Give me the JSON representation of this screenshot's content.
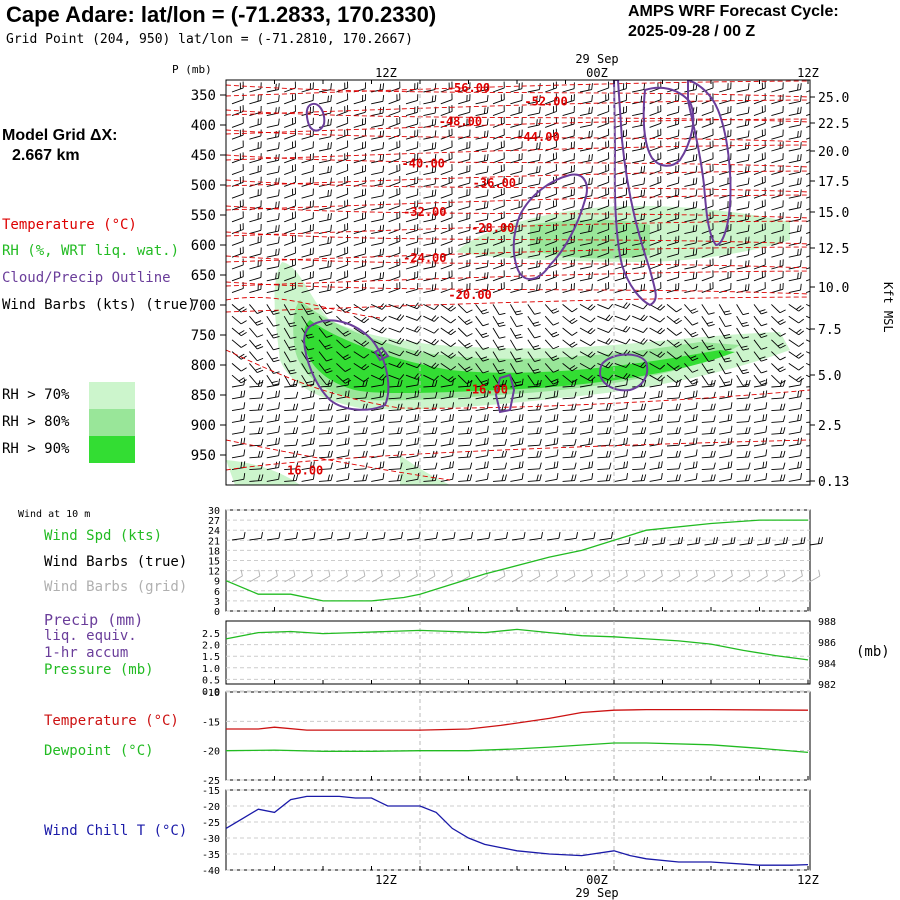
{
  "header": {
    "title": "Cape Adare:  lat/lon = (-71.2833, 170.2330)",
    "subtitle": "Grid Point (204, 950) lat/lon = (-71.2810, 170.2667)",
    "cycle_line1": "AMPS WRF Forecast Cycle:",
    "cycle_line2": "2025-09-28 / 00  Z"
  },
  "model_grid": {
    "line1": "Model Grid ΔX:",
    "line2": "2.667 km"
  },
  "legend": {
    "temperature": "Temperature (°C)",
    "rh": "RH (%, WRT liq. wat.)",
    "cloud": "Cloud/Precip Outline",
    "wind_barbs": "Wind Barbs (kts) (true)",
    "rh70": "RH > 70%",
    "rh80": "RH > 80%",
    "rh90": "RH > 90%"
  },
  "colors": {
    "temperature": "#dd0000",
    "rh": "#22bb22",
    "cloud": "#6a3d9a",
    "wind_chill": "#1a1aa8",
    "rh70": "#ccf5cc",
    "rh80": "#99e699",
    "rh90": "#33dd33",
    "grid_barbs": "#b0b0b0"
  },
  "time_axis": {
    "date_label": "29 Sep",
    "ticks": [
      "12Z",
      "00Z",
      "12Z"
    ]
  },
  "chart_data": [
    {
      "type": "heatmap",
      "name": "pressure-time-cross-section",
      "ylabel": "P (mb)",
      "right_label": "Kft MSL",
      "pressure_ticks": [
        350,
        400,
        450,
        500,
        550,
        600,
        650,
        700,
        750,
        800,
        850,
        900,
        950
      ],
      "height_ticks": [
        "25.0",
        "22.5",
        "20.0",
        "17.5",
        "15.0",
        "12.5",
        "10.0",
        "7.5",
        "5.0",
        "2.5",
        "0.13"
      ],
      "ylim": [
        1000,
        325
      ],
      "x_hours": [
        0,
        36
      ],
      "isotherms": [
        {
          "label": "-56.00",
          "t": 15.0,
          "p": 338
        },
        {
          "label": "-52.00",
          "t": 19.8,
          "p": 361
        },
        {
          "label": "-48.00",
          "t": 14.5,
          "p": 394
        },
        {
          "label": "-44.00",
          "t": 19.3,
          "p": 420
        },
        {
          "label": "-40.00",
          "t": 12.2,
          "p": 464
        },
        {
          "label": "-36.00",
          "t": 16.6,
          "p": 497
        },
        {
          "label": "-32.00",
          "t": 12.3,
          "p": 545
        },
        {
          "label": "-28.00",
          "t": 16.5,
          "p": 572
        },
        {
          "label": "-24.00",
          "t": 12.3,
          "p": 622
        },
        {
          "label": "-20.00",
          "t": 15.1,
          "p": 683
        },
        {
          "label": "-16.00",
          "t": 16.1,
          "p": 841
        },
        {
          "label": "16.00",
          "t": 4.9,
          "p": 976
        }
      ]
    },
    {
      "type": "line",
      "name": "wind-speed",
      "title": "Wind at 10 m",
      "series": [
        {
          "name": "Wind Spd (kts)",
          "x": [
            0,
            2,
            4,
            6,
            9,
            11,
            12,
            14,
            16,
            20,
            22,
            24,
            26,
            30,
            33,
            36
          ],
          "values": [
            9,
            5,
            5,
            3,
            3,
            4,
            5,
            8,
            11,
            16,
            18,
            21,
            24,
            26,
            27,
            27
          ]
        }
      ],
      "legend": [
        "Wind Spd (kts)",
        "Wind Barbs (true)",
        "Wind Barbs (grid)"
      ],
      "yticks": [
        0,
        3,
        6,
        9,
        12,
        15,
        18,
        21,
        24,
        27,
        30
      ],
      "ylim": [
        0,
        30
      ]
    },
    {
      "type": "line",
      "name": "precip-pressure",
      "series": [
        {
          "name": "Pressure (mb)",
          "x": [
            0,
            2,
            4,
            6,
            8,
            10,
            12,
            14,
            16,
            18,
            20,
            22,
            24,
            26,
            28,
            30,
            32,
            34,
            36
          ],
          "values": [
            986.3,
            986.9,
            987.0,
            986.8,
            986.9,
            987.0,
            987.1,
            987.0,
            986.9,
            987.2,
            986.9,
            986.6,
            986.5,
            986.3,
            986.1,
            985.8,
            985.2,
            984.7,
            984.3
          ]
        }
      ],
      "legend": [
        "Precip (mm)",
        "liq. equiv.",
        "1-hr accum",
        "Pressure (mb)"
      ],
      "precip_ticks": [
        "2.5",
        "2.0",
        "1.5",
        "1.0",
        "0.5",
        "0.0"
      ],
      "pressure_ticks": [
        988,
        986,
        984,
        982
      ],
      "right_unit": "(mb)",
      "ylim": [
        982,
        988
      ]
    },
    {
      "type": "line",
      "name": "temperature-dewpoint",
      "series": [
        {
          "name": "Temperature (°C)",
          "x": [
            0,
            2,
            3,
            5,
            8,
            12,
            15,
            17,
            20,
            22,
            24,
            26,
            30,
            36
          ],
          "values": [
            -16.3,
            -16.3,
            -16.0,
            -16.5,
            -16.5,
            -16.5,
            -16.3,
            -15.7,
            -14.5,
            -13.5,
            -13.1,
            -13.0,
            -13.0,
            -13.1
          ]
        },
        {
          "name": "Dewpoint (°C)",
          "x": [
            0,
            3,
            6,
            9,
            12,
            15,
            18,
            20,
            24,
            26,
            30,
            33,
            36
          ],
          "values": [
            -20.0,
            -19.9,
            -20.1,
            -20.1,
            -20.0,
            -20.0,
            -19.7,
            -19.4,
            -18.7,
            -18.7,
            -19.0,
            -19.6,
            -20.3
          ]
        }
      ],
      "yticks": [
        -10,
        -15,
        -20,
        -25
      ],
      "ylim": [
        -25,
        -10
      ]
    },
    {
      "type": "line",
      "name": "wind-chill",
      "series": [
        {
          "name": "Wind Chill T (°C)",
          "x": [
            0,
            1,
            2,
            3,
            4,
            5,
            6,
            7,
            8,
            9,
            10,
            11,
            12,
            13,
            14,
            15,
            16,
            17,
            18,
            20,
            22,
            24,
            25,
            26,
            28,
            30,
            33,
            35,
            36
          ],
          "values": [
            -27,
            -24,
            -21,
            -22,
            -18,
            -17,
            -17,
            -17,
            -17.5,
            -17.5,
            -20,
            -20,
            -20,
            -22,
            -27,
            -30,
            -32,
            -33,
            -34,
            -35,
            -35.5,
            -34,
            -35.5,
            -36.5,
            -37.5,
            -37.5,
            -38.5,
            -38.5,
            -38.3
          ]
        }
      ],
      "yticks": [
        -15,
        -20,
        -25,
        -30,
        -35,
        -40
      ],
      "ylim": [
        -40,
        -15
      ]
    }
  ]
}
